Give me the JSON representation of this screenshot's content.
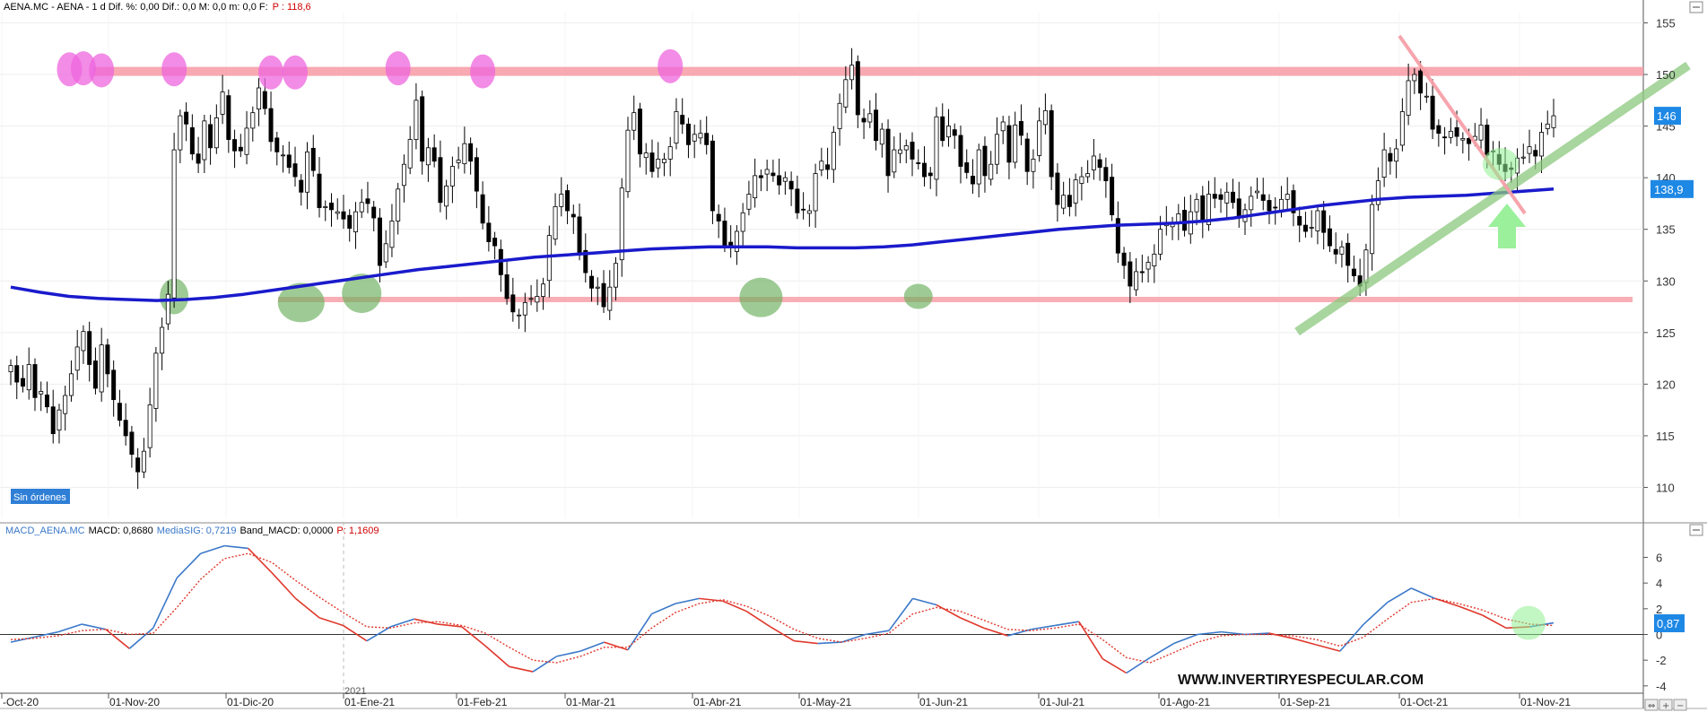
{
  "header": {
    "main": "AENA.MC - AENA -  1 d  Dif. %: 0,00  Dif.: 0,0  M: 0,0  m: 0,0  F:",
    "main_f": "P : 118,6",
    "macd_name": "MACD_AENA.MC",
    "macd_vals": "MACD: 0,8680",
    "macd_sig": "MediaSIG: 0,7219",
    "macd_band": "Band_MACD: 0,0000",
    "macd_p": "P: 1,1609"
  },
  "badge": "Sin órdenes",
  "watermark": "WWW.INVERTIRYESPECULAR.COM",
  "year_label": "2021",
  "colors": {
    "ma": "#1a1acc",
    "resistance": "#f7a0a8",
    "top_marker": "#ee66dd",
    "support_marker": "#6aaf5c",
    "uptrend": "#8cc97e",
    "macd": "#3a78c9",
    "signal": "#e0382c",
    "arrow": "#90ee90",
    "price_tag": "#1e88e5"
  },
  "chart_data": [
    {
      "type": "candlestick",
      "title": "AENA.MC - AENA - 1 d",
      "x_ticks": [
        "-Oct-20",
        "01-Nov-20",
        "01-Dic-20",
        "01-Ene-21",
        "01-Feb-21",
        "01-Mar-21",
        "01-Abr-21",
        "01-May-21",
        "01-Jun-21",
        "01-Jul-21",
        "01-Ago-21",
        "01-Sep-21",
        "01-Oct-21",
        "01-Nov-21"
      ],
      "y_ticks": [
        "110",
        "115",
        "120",
        "125",
        "130",
        "135",
        "140",
        "145",
        "150",
        "155"
      ],
      "ylim": [
        107,
        156
      ],
      "last_price": "146",
      "ma_value": "138,9",
      "close": [
        121.8,
        120.2,
        119.8,
        121.9,
        118.7,
        119.3,
        117.8,
        115.2,
        117.5,
        118.9,
        121.0,
        123.6,
        125.1,
        121.9,
        119.6,
        123.8,
        121.0,
        118.5,
        116.5,
        115.0,
        113.2,
        111.5,
        113.5,
        118.0,
        123.0,
        125.5,
        128.7,
        142.7,
        146.0,
        145.2,
        142.3,
        141.4,
        145.5,
        142.9,
        145.8,
        148.3,
        143.7,
        142.6,
        142.6,
        144.8,
        146.3,
        148.7,
        146.7,
        143.5,
        142.5,
        142.2,
        141.0,
        140.1,
        138.6,
        142.5,
        140.7,
        137.1,
        137.2,
        136.9,
        136.7,
        136.0,
        135.1,
        136.7,
        137.6,
        137.5,
        136.1,
        131.5,
        133.6,
        135.8,
        138.9,
        141.3,
        143.7,
        147.5,
        141.6,
        142.9,
        141.6,
        137.6,
        139.2,
        141.1,
        141.7,
        143.3,
        141.6,
        138.7,
        135.6,
        133.8,
        133.4,
        130.6,
        128.3,
        127.0,
        126.7,
        127.9,
        128.3,
        128.5,
        129.7,
        134.4,
        137.2,
        138.4,
        136.8,
        136.2,
        132.6,
        130.8,
        129.3,
        129.4,
        127.5,
        129.4,
        131.7,
        139.0,
        144.6,
        146.3,
        142.3,
        142.4,
        140.6,
        141.8,
        141.8,
        143.0,
        146.4,
        145.2,
        143.2,
        144.2,
        144.3,
        143.2,
        136.8,
        135.8,
        133.4,
        133.2,
        134.8,
        136.6,
        138.4,
        140.2,
        140.0,
        140.8,
        140.2,
        139.3,
        140.0,
        138.9,
        136.6,
        136.9,
        136.8,
        140.4,
        141.6,
        140.8,
        144.4,
        147.2,
        149.5,
        150.9,
        146.1,
        145.4,
        146.2,
        143.6,
        144.7,
        140.2,
        142.7,
        142.7,
        143.1,
        141.8,
        141.4,
        140.1,
        140.2,
        145.9,
        143.6,
        145.0,
        144.1,
        141.1,
        140.5,
        139.4,
        142.7,
        140.2,
        141.3,
        144.2,
        145.4,
        141.5,
        145.1,
        144.1,
        140.6,
        141.8,
        145.5,
        146.5,
        140.1,
        137.4,
        138.3,
        137.2,
        139.8,
        140.1,
        140.4,
        142.1,
        141.0,
        139.7,
        136.4,
        132.7,
        131.5,
        129.5,
        130.9,
        130.8,
        131.8,
        132.6,
        135.0,
        135.6,
        135.6,
        136.5,
        134.9,
        136.7,
        137.9,
        135.8,
        138.4,
        138.0,
        137.9,
        138.6,
        137.6,
        136.1,
        136.9,
        138.2,
        138.7,
        137.8,
        136.8,
        137.1,
        137.9,
        138.4,
        136.6,
        135.4,
        134.8,
        135.2,
        136.8,
        134.7,
        133.4,
        132.6,
        133.3,
        131.5,
        130.5,
        129.5,
        133.0,
        137.4,
        139.7,
        142.7,
        141.6,
        142.8,
        146.4,
        149.4,
        150.0,
        148.2,
        147.9,
        144.7,
        144.3,
        143.9,
        144.5,
        144.0,
        143.8,
        143.3,
        144.0,
        145.1,
        142.2,
        142.6,
        141.3,
        140.6,
        140.8,
        141.9,
        142.0,
        143.0,
        142.1,
        144.4,
        145.2,
        146.0
      ],
      "series": [
        {
          "name": "",
          "kind": "moving-average",
          "values": [
            129.4,
            128.9,
            128.5,
            128.3,
            128.2,
            128.1,
            128.2,
            128.4,
            128.7,
            129.1,
            129.5,
            129.9,
            130.3,
            130.7,
            131.1,
            131.4,
            131.7,
            132.0,
            132.3,
            132.5,
            132.7,
            132.9,
            133.1,
            133.2,
            133.3,
            133.3,
            133.3,
            133.2,
            133.2,
            133.2,
            133.3,
            133.5,
            133.8,
            134.1,
            134.4,
            134.7,
            135.0,
            135.2,
            135.4,
            135.5,
            135.6,
            135.8,
            136.1,
            136.5,
            136.9,
            137.3,
            137.6,
            137.9,
            138.1,
            138.2,
            138.3,
            138.5,
            138.7,
            138.9
          ]
        }
      ],
      "annotations": {
        "resistance_level": 150.3,
        "support_level": 128.2
      }
    },
    {
      "type": "line",
      "title": "MACD_AENA.MC",
      "y_ticks": [
        "6",
        "4",
        "2",
        "0",
        "-2",
        "-4"
      ],
      "ylim": [
        -4.5,
        7.5
      ],
      "current_value": "0,87",
      "series": [
        {
          "name": "MACD",
          "values": [
            -0.6,
            -0.2,
            0.2,
            0.8,
            0.4,
            -1.1,
            0.5,
            4.4,
            6.3,
            6.9,
            6.7,
            4.8,
            2.8,
            1.3,
            0.7,
            -0.5,
            0.6,
            1.2,
            0.8,
            0.6,
            -0.9,
            -2.5,
            -2.9,
            -1.7,
            -1.3,
            -0.6,
            -1.2,
            1.6,
            2.4,
            2.8,
            2.6,
            1.8,
            0.6,
            -0.5,
            -0.7,
            -0.6,
            0.0,
            0.3,
            2.8,
            2.3,
            1.3,
            0.5,
            -0.1,
            0.4,
            0.7,
            1.0,
            -1.9,
            -3.0,
            -1.8,
            -0.7,
            0.0,
            0.2,
            0.0,
            0.1,
            -0.3,
            -0.8,
            -1.3,
            0.8,
            2.5,
            3.6,
            2.8,
            2.2,
            1.5,
            0.5,
            0.6,
            0.9
          ]
        },
        {
          "name": "MediaSIG",
          "values": [
            -0.4,
            -0.3,
            -0.1,
            0.3,
            0.4,
            0.0,
            0.1,
            2.1,
            4.3,
            5.9,
            6.3,
            5.6,
            4.2,
            2.9,
            1.7,
            0.6,
            0.5,
            0.9,
            1.0,
            0.7,
            0.1,
            -1.0,
            -2.0,
            -2.2,
            -1.7,
            -1.0,
            -1.0,
            0.5,
            1.7,
            2.4,
            2.7,
            2.2,
            1.4,
            0.4,
            -0.3,
            -0.6,
            -0.3,
            0.1,
            1.6,
            2.1,
            1.8,
            1.1,
            0.4,
            0.3,
            0.5,
            0.8,
            -0.4,
            -1.8,
            -2.2,
            -1.4,
            -0.6,
            -0.1,
            0.0,
            0.0,
            -0.1,
            -0.4,
            -0.9,
            -0.2,
            1.2,
            2.5,
            2.8,
            2.4,
            1.9,
            1.2,
            0.8,
            0.7
          ]
        }
      ]
    }
  ]
}
